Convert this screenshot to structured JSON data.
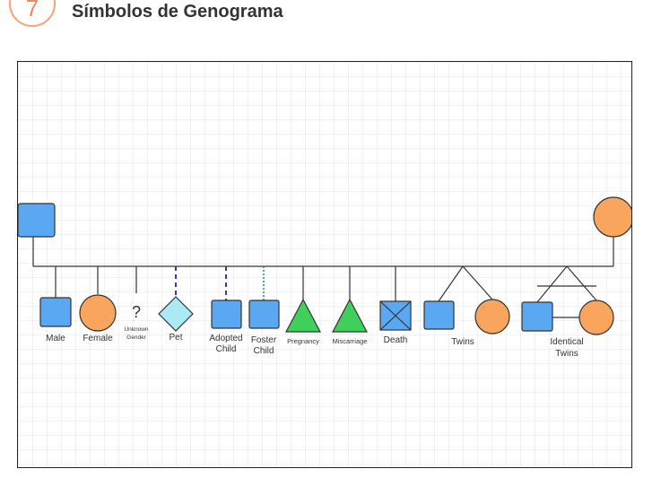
{
  "header": {
    "badge_number": "7",
    "title": "Símbolos de Genograma"
  },
  "colors": {
    "male_fill": "#5aa7f2",
    "female_fill": "#f9a55e",
    "pet_fill": "#a9eaf4",
    "pregnancy_fill": "#3fcf5a",
    "line": "#333333",
    "dashed_line": "#3a3aa0",
    "dotted_line": "#2a9a88"
  },
  "symbols": {
    "male": "Male",
    "female": "Female",
    "unknown_mark": "?",
    "unknown_line1": "Unknown",
    "unknown_line2": "Gender",
    "pet": "Pet",
    "adopted_line1": "Adopted",
    "adopted_line2": "Child",
    "foster_line1": "Foster",
    "foster_line2": "Child",
    "pregnancy": "Pregnancy",
    "miscarriage": "Miscarriage",
    "death": "Death",
    "twins": "Twins",
    "identical_line1": "Identical",
    "identical_line2": "Twins"
  }
}
